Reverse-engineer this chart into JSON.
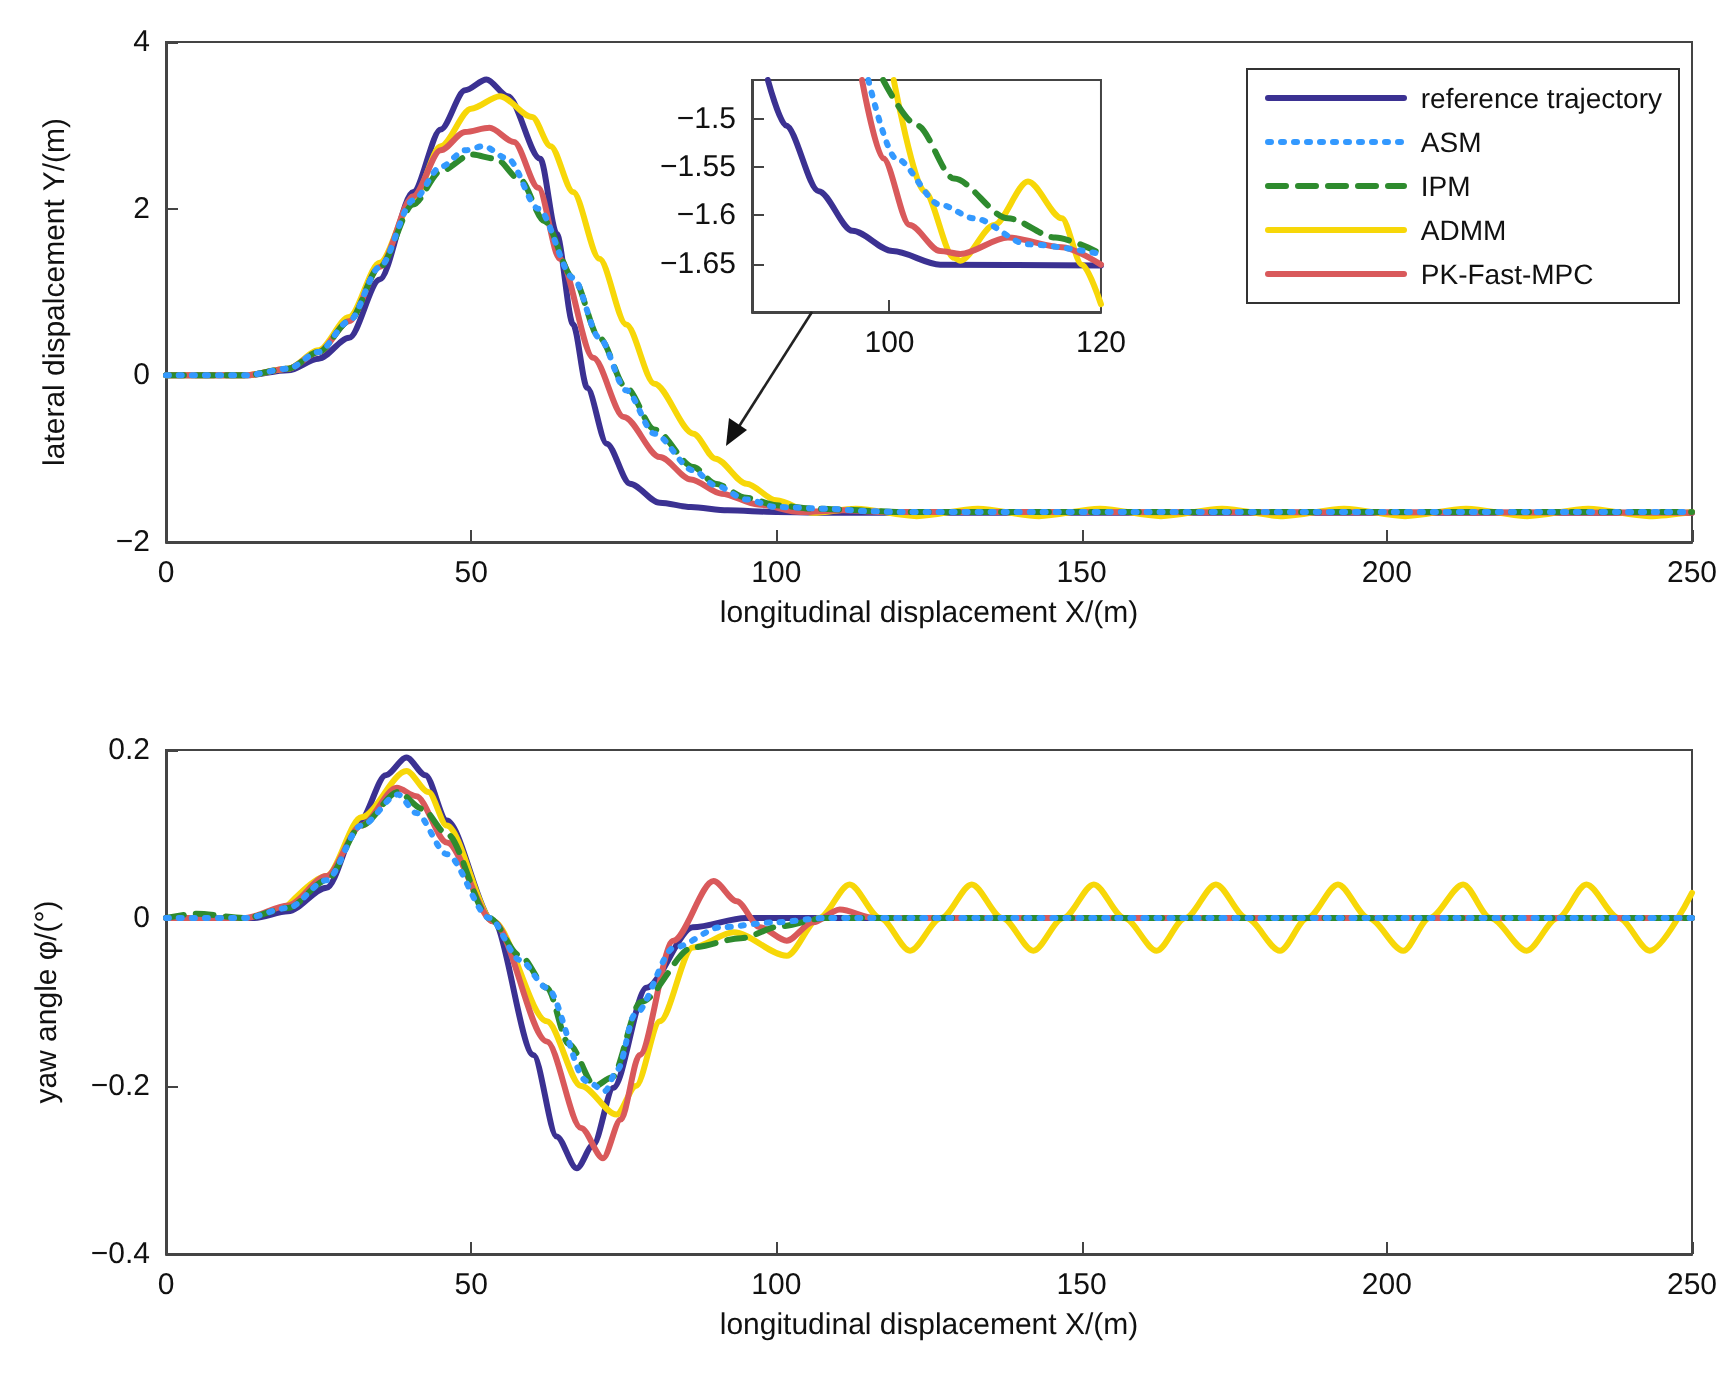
{
  "chart_data": [
    {
      "type": "line",
      "xlabel": "longitudinal displacement X/(m)",
      "ylabel": "lateral dispalcement Y/(m)",
      "xlim": [
        0,
        250
      ],
      "xticks": [
        0,
        50,
        100,
        150,
        200,
        250
      ],
      "ylim": [
        -2,
        4
      ],
      "yticks": [
        -2,
        0,
        2,
        4
      ],
      "grid": false,
      "legend": "top right",
      "series": [
        {
          "name": "reference trajectory",
          "color": "#3b3192",
          "line_style": "solid",
          "x": [
            0,
            13,
            20,
            25,
            30,
            35,
            40.5,
            45,
            49,
            52.5,
            56,
            61.3,
            64,
            66.7,
            69,
            72.2,
            76,
            80.9,
            86,
            92,
            100,
            110,
            250
          ],
          "values": [
            0,
            0,
            0.06,
            0.2,
            0.45,
            1.15,
            2.2,
            2.95,
            3.42,
            3.55,
            3.35,
            2.6,
            1.7,
            0.61,
            -0.15,
            -0.82,
            -1.3,
            -1.53,
            -1.58,
            -1.62,
            -1.64,
            -1.65,
            -1.65
          ]
        },
        {
          "name": "ASM",
          "color": "#3399ff",
          "line_style": "dotted",
          "x": [
            0,
            13,
            20,
            25,
            30,
            35,
            40.5,
            45,
            49,
            52,
            56,
            61,
            66.7,
            71,
            75.4,
            80,
            86.4,
            90,
            95.1,
            100,
            108,
            115,
            120,
            250
          ],
          "values": [
            0,
            0,
            0.08,
            0.28,
            0.65,
            1.3,
            2.1,
            2.5,
            2.7,
            2.75,
            2.6,
            2.0,
            1.17,
            0.45,
            -0.18,
            -0.7,
            -1.14,
            -1.32,
            -1.49,
            -1.58,
            -1.6,
            -1.63,
            -1.64,
            -1.64
          ]
        },
        {
          "name": "IPM",
          "color": "#2e8b2e",
          "line_style": "dashed",
          "x": [
            0,
            13,
            20,
            25,
            30,
            35,
            40.5,
            45,
            50,
            54,
            58,
            62,
            66.7,
            71,
            75.4,
            80,
            86.4,
            90,
            95.1,
            100,
            106,
            111,
            116,
            120,
            250
          ],
          "values": [
            0,
            0,
            0.08,
            0.28,
            0.65,
            1.3,
            2.05,
            2.45,
            2.65,
            2.6,
            2.35,
            1.85,
            1.17,
            0.45,
            -0.15,
            -0.65,
            -1.1,
            -1.3,
            -1.47,
            -1.56,
            -1.6,
            -1.61,
            -1.63,
            -1.64,
            -1.64
          ]
        },
        {
          "name": "ADMM",
          "color": "#f7d708",
          "line_style": "solid",
          "x": [
            0,
            13,
            20,
            25,
            30,
            35,
            40.5,
            45,
            50,
            54.7,
            60,
            63,
            66.7,
            71,
            75.4,
            80,
            86.4,
            90,
            95.1,
            100,
            106,
            113,
            123,
            133,
            143,
            153,
            163,
            173,
            183,
            193,
            203,
            213,
            223,
            233,
            243,
            250
          ],
          "values": [
            0,
            0,
            0.08,
            0.3,
            0.7,
            1.35,
            2.1,
            2.75,
            3.2,
            3.35,
            3.1,
            2.75,
            2.2,
            1.4,
            0.61,
            -0.1,
            -0.7,
            -1.0,
            -1.3,
            -1.5,
            -1.65,
            -1.6,
            -1.69,
            -1.6,
            -1.69,
            -1.6,
            -1.69,
            -1.6,
            -1.69,
            -1.6,
            -1.69,
            -1.6,
            -1.69,
            -1.6,
            -1.69,
            -1.64
          ]
        },
        {
          "name": "PK-Fast-MPC",
          "color": "#d9595b",
          "line_style": "solid",
          "x": [
            0,
            13,
            20,
            25,
            30,
            35,
            40.5,
            45,
            49,
            53,
            57,
            61,
            64.5,
            70,
            75,
            80.9,
            86,
            91,
            97,
            104,
            111,
            118,
            250
          ],
          "values": [
            0,
            0,
            0.08,
            0.28,
            0.65,
            1.3,
            2.15,
            2.7,
            2.92,
            2.97,
            2.8,
            2.25,
            1.4,
            0.21,
            -0.5,
            -0.98,
            -1.25,
            -1.42,
            -1.55,
            -1.64,
            -1.62,
            -1.64,
            -1.65
          ]
        }
      ]
    },
    {
      "type": "line",
      "xlim": [
        87,
        120
      ],
      "xticks": [
        100,
        120
      ],
      "ylim": [
        -1.7,
        -1.46
      ],
      "yticks": [
        -1.5,
        -1.55,
        -1.6,
        -1.65
      ],
      "grid": false,
      "series": [
        {
          "color": "#3b3192",
          "line_style": "solid",
          "x": [
            88.5,
            90.2,
            93.3,
            96.5,
            100.3,
            104.8,
            120
          ],
          "values": [
            -1.46,
            -1.507,
            -1.575,
            -1.616,
            -1.637,
            -1.651,
            -1.652
          ]
        },
        {
          "color": "#3399ff",
          "line_style": "dotted",
          "x": [
            98,
            100.6,
            104.8,
            108,
            113.1,
            120
          ],
          "values": [
            -1.46,
            -1.541,
            -1.589,
            -1.603,
            -1.63,
            -1.64
          ]
        },
        {
          "color": "#2e8b2e",
          "line_style": "dashed",
          "x": [
            99.4,
            102.6,
            106.1,
            111.2,
            115.7,
            119.5
          ],
          "values": [
            -1.46,
            -1.507,
            -1.562,
            -1.603,
            -1.623,
            -1.637
          ]
        },
        {
          "color": "#f7d708",
          "line_style": "solid",
          "x": [
            100.4,
            103.3,
            106.1,
            106.7,
            109.9,
            113.1,
            116.3,
            118.2,
            120
          ],
          "values": [
            -1.46,
            -1.575,
            -1.644,
            -1.647,
            -1.61,
            -1.565,
            -1.603,
            -1.651,
            -1.692
          ]
        },
        {
          "color": "#d9595b",
          "line_style": "solid",
          "x": [
            97.4,
            99.4,
            101.9,
            104.8,
            106.7,
            111.2,
            116.3,
            120
          ],
          "values": [
            -1.46,
            -1.541,
            -1.61,
            -1.637,
            -1.64,
            -1.623,
            -1.633,
            -1.651
          ]
        }
      ]
    },
    {
      "type": "line",
      "xlabel": "longitudinal displacement X/(m)",
      "ylabel": "yaw angle φ/(°)",
      "xlim": [
        0,
        250
      ],
      "xticks": [
        0,
        50,
        100,
        150,
        200,
        250
      ],
      "ylim": [
        -0.4,
        0.2
      ],
      "yticks": [
        -0.4,
        -0.2,
        0,
        0.2
      ],
      "grid": false,
      "series": [
        {
          "color": "#3b3192",
          "line_style": "solid",
          "x": [
            0,
            14.5,
            20,
            26.3,
            31.8,
            36,
            39.4,
            42.5,
            46,
            53.6,
            60.2,
            64,
            67.3,
            70,
            73.3,
            78.7,
            86.3,
            95,
            250
          ],
          "values": [
            0,
            0,
            0.008,
            0.036,
            0.116,
            0.17,
            0.191,
            0.17,
            0.116,
            -0.004,
            -0.163,
            -0.26,
            -0.298,
            -0.27,
            -0.202,
            -0.083,
            -0.011,
            0,
            0
          ]
        },
        {
          "color": "#3399ff",
          "line_style": "dotted",
          "x": [
            0,
            13,
            20,
            26.3,
            32,
            38,
            41,
            46,
            53,
            58,
            62.4,
            68.9,
            71.9,
            74,
            76.8,
            83.3,
            90.9,
            100,
            108,
            250
          ],
          "values": [
            0,
            0,
            0.012,
            0.045,
            0.11,
            0.147,
            0.125,
            0.076,
            0,
            -0.05,
            -0.083,
            -0.194,
            -0.206,
            -0.18,
            -0.115,
            -0.035,
            -0.011,
            -0.005,
            0,
            0
          ]
        },
        {
          "color": "#2e8b2e",
          "line_style": "dashed",
          "x": [
            0,
            5,
            13,
            20,
            26.3,
            32,
            38,
            42,
            46,
            53,
            58,
            62.4,
            66,
            70.3,
            73,
            77.8,
            86.3,
            94.2,
            100.6,
            108,
            250
          ],
          "values": [
            0,
            0.005,
            0,
            0.012,
            0.045,
            0.11,
            0.15,
            0.13,
            0.1,
            0,
            -0.045,
            -0.083,
            -0.15,
            -0.2,
            -0.19,
            -0.1,
            -0.035,
            -0.024,
            -0.01,
            0,
            0
          ]
        },
        {
          "color": "#f7d708",
          "line_style": "solid",
          "x": [
            20,
            26.3,
            32,
            39.4,
            43,
            46,
            53.6,
            62.4,
            68,
            73.8,
            77,
            80.9,
            86.3,
            93,
            101.7,
            107,
            112,
            117,
            121.9,
            127,
            132,
            137,
            142.1,
            147,
            152,
            157,
            162.3,
            167,
            172,
            177,
            182.5,
            187,
            192,
            197,
            202.7,
            207,
            212.5,
            217,
            222.9,
            228,
            232.7,
            238,
            243.1,
            250
          ],
          "values": [
            0.015,
            0.05,
            0.12,
            0.175,
            0.15,
            0.11,
            -0.004,
            -0.123,
            -0.2,
            -0.234,
            -0.2,
            -0.123,
            -0.035,
            -0.017,
            -0.045,
            0,
            0.04,
            0,
            -0.039,
            0,
            0.04,
            0,
            -0.039,
            0,
            0.04,
            0,
            -0.039,
            0,
            0.04,
            0,
            -0.039,
            0,
            0.04,
            0,
            -0.039,
            0,
            0.04,
            0,
            -0.039,
            0,
            0.04,
            0,
            -0.039,
            0.03
          ]
        },
        {
          "color": "#d9595b",
          "line_style": "solid",
          "x": [
            0,
            13,
            20,
            26.3,
            32,
            37.8,
            41,
            46,
            53.6,
            62.4,
            68,
            71.6,
            74.5,
            77.6,
            83.1,
            89.7,
            93.5,
            97.3,
            101.7,
            106,
            110.4,
            116,
            250
          ],
          "values": [
            0,
            0,
            0.015,
            0.05,
            0.11,
            0.155,
            0.145,
            0.09,
            -0.004,
            -0.147,
            -0.25,
            -0.286,
            -0.24,
            -0.163,
            -0.027,
            0.044,
            0.02,
            -0.011,
            -0.027,
            -0.005,
            0.01,
            0,
            0
          ]
        }
      ]
    }
  ]
}
